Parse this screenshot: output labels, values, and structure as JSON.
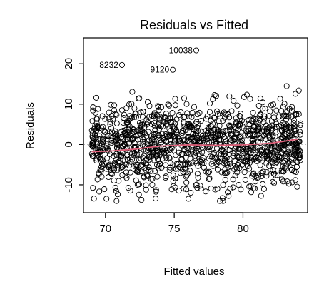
{
  "chart_data": {
    "type": "scatter",
    "title": "Residuals vs Fitted",
    "xlabel": "Fitted values",
    "ylabel": "Residuals",
    "xlim": [
      68.4,
      84.7
    ],
    "ylim": [
      -16.9,
      26.4
    ],
    "xticks": [
      70,
      75,
      80
    ],
    "yticks": [
      -10,
      0,
      10,
      20
    ],
    "x_tick_labels": [
      "70",
      "75",
      "80"
    ],
    "y_tick_labels": [
      "-10",
      "0",
      "10",
      "20"
    ],
    "reference_line_y": 0,
    "grid": false,
    "point_style": "open-circle",
    "point_color": "#000000",
    "n_points_approx": 1300,
    "cloud_range": {
      "x": [
        69.0,
        84.2
      ],
      "y": [
        -14.0,
        16.5
      ]
    },
    "smoother": {
      "color": "#e0607a",
      "points": [
        {
          "x": 69.0,
          "y": -1.8
        },
        {
          "x": 70.5,
          "y": -1.6
        },
        {
          "x": 72.0,
          "y": -1.2
        },
        {
          "x": 74.0,
          "y": -0.4
        },
        {
          "x": 76.0,
          "y": -0.1
        },
        {
          "x": 78.0,
          "y": -0.2
        },
        {
          "x": 80.0,
          "y": -0.1
        },
        {
          "x": 82.0,
          "y": 0.3
        },
        {
          "x": 83.0,
          "y": 0.8
        },
        {
          "x": 84.0,
          "y": 1.3
        }
      ]
    },
    "outliers": [
      {
        "label": "10038",
        "x": 76.6,
        "y": 23.3
      },
      {
        "label": "8232",
        "x": 71.2,
        "y": 19.7
      },
      {
        "label": "9120",
        "x": 74.9,
        "y": 18.5
      }
    ]
  }
}
